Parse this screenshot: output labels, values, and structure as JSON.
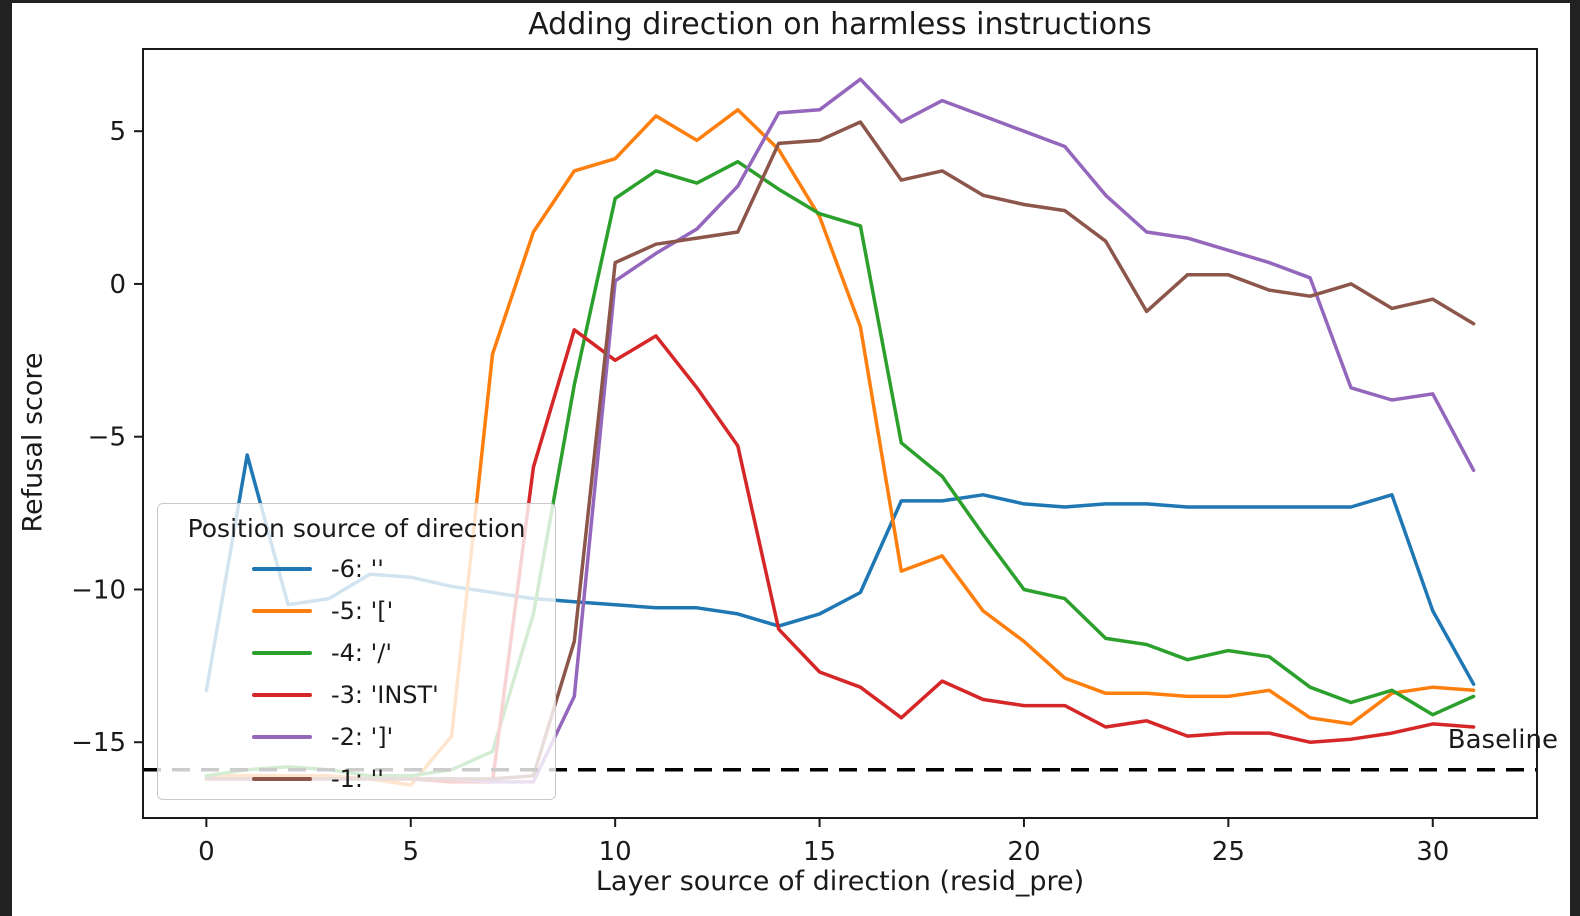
{
  "chart_data": {
    "type": "line",
    "title": "Adding direction on harmless instructions",
    "xlabel": "Layer source of direction (resid_pre)",
    "ylabel": "Refusal score",
    "grid": false,
    "xlim": [
      -1.55,
      32.55
    ],
    "ylim": [
      -17.48,
      7.69
    ],
    "xticks": [
      0,
      5,
      10,
      15,
      20,
      25,
      30
    ],
    "xticklabels": [
      "0",
      "5",
      "10",
      "15",
      "20",
      "25",
      "30"
    ],
    "yticks": [
      5,
      0,
      -5,
      -10,
      -15
    ],
    "yticklabels": [
      "5",
      "0",
      "−5",
      "−10",
      "−15"
    ],
    "baseline": {
      "value": -15.9,
      "label": "Baseline",
      "style": "dashed",
      "color": "#000000"
    },
    "legend": {
      "title": "Position source of direction",
      "position": "lower-left"
    },
    "x": [
      0,
      1,
      2,
      3,
      4,
      5,
      6,
      7,
      8,
      9,
      10,
      11,
      12,
      13,
      14,
      15,
      16,
      17,
      18,
      19,
      20,
      21,
      22,
      23,
      24,
      25,
      26,
      27,
      28,
      29,
      30,
      31
    ],
    "series": [
      {
        "name": "-6: ''",
        "color": "#1f77b4",
        "values": [
          -13.3,
          -5.6,
          -10.5,
          -10.3,
          -9.5,
          -9.6,
          -9.9,
          -10.1,
          -10.3,
          -10.4,
          -10.5,
          -10.6,
          -10.6,
          -10.8,
          -11.2,
          -10.8,
          -10.1,
          -7.1,
          -7.1,
          -6.9,
          -7.2,
          -7.3,
          -7.2,
          -7.2,
          -7.3,
          -7.3,
          -7.3,
          -7.3,
          -7.3,
          -6.9,
          -10.7,
          -13.1
        ]
      },
      {
        "name": "-5: '['",
        "color": "#ff7f0e",
        "values": [
          -16.1,
          -16.1,
          -16.1,
          -16.1,
          -16.2,
          -16.4,
          -14.8,
          -2.3,
          1.7,
          3.7,
          4.1,
          5.5,
          4.7,
          5.7,
          4.4,
          2.2,
          -1.4,
          -9.4,
          -8.9,
          -10.7,
          -11.7,
          -12.9,
          -13.4,
          -13.4,
          -13.5,
          -13.5,
          -13.3,
          -14.2,
          -14.4,
          -13.4,
          -13.2,
          -13.3
        ]
      },
      {
        "name": "-4: '/'",
        "color": "#2ca02c",
        "values": [
          -16.1,
          -15.9,
          -15.8,
          -15.9,
          -16.1,
          -16.1,
          -15.9,
          -15.3,
          -10.8,
          -3.3,
          2.8,
          3.7,
          3.3,
          4.0,
          3.1,
          2.3,
          1.9,
          -5.2,
          -6.3,
          -8.2,
          -10.0,
          -10.3,
          -11.6,
          -11.8,
          -12.3,
          -12.0,
          -12.2,
          -13.2,
          -13.7,
          -13.3,
          -14.1,
          -13.5
        ]
      },
      {
        "name": "-3: 'INST'",
        "color": "#d62728",
        "values": [
          -16.2,
          -16.2,
          -16.2,
          -16.2,
          -16.2,
          -16.2,
          -16.3,
          -16.3,
          -6.0,
          -1.5,
          -2.5,
          -1.7,
          -3.4,
          -5.3,
          -11.3,
          -12.7,
          -13.2,
          -14.2,
          -13.0,
          -13.6,
          -13.8,
          -13.8,
          -14.5,
          -14.3,
          -14.8,
          -14.7,
          -14.7,
          -15.0,
          -14.9,
          -14.7,
          -14.4,
          -14.5
        ]
      },
      {
        "name": "-2: ']'",
        "color": "#9467bd",
        "values": [
          -16.2,
          -16.2,
          -16.2,
          -16.2,
          -16.2,
          -16.2,
          -16.2,
          -16.3,
          -16.3,
          -13.5,
          0.1,
          1.0,
          1.8,
          3.2,
          5.6,
          5.7,
          6.7,
          5.3,
          6.0,
          5.5,
          5.0,
          4.5,
          2.9,
          1.7,
          1.5,
          1.1,
          0.7,
          0.2,
          -3.4,
          -3.8,
          -3.6,
          -6.1
        ]
      },
      {
        "name": "-1: ''",
        "color": "#8c564b",
        "values": [
          -16.2,
          -16.2,
          -16.2,
          -16.2,
          -16.2,
          -16.2,
          -16.2,
          -16.2,
          -16.1,
          -11.7,
          0.7,
          1.3,
          1.5,
          1.7,
          4.6,
          4.7,
          5.3,
          3.4,
          3.7,
          2.9,
          2.6,
          2.4,
          1.4,
          -0.9,
          0.3,
          0.3,
          -0.2,
          -0.4,
          0.0,
          -0.8,
          -0.5,
          -1.3
        ]
      }
    ],
    "colors": {
      "text": "#1a1a1a",
      "spine": "#1a1a1a",
      "background": "#ffffff",
      "window_edge": "#212121"
    }
  }
}
